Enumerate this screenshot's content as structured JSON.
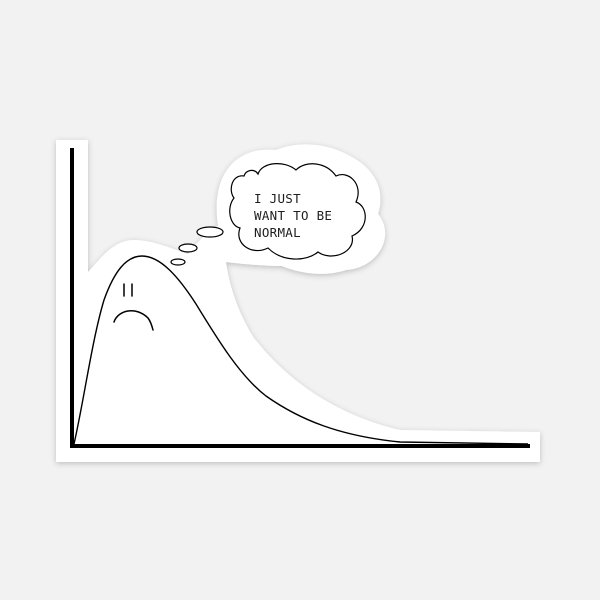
{
  "sticker": {
    "thought_lines": [
      "I JUST",
      "WANT TO BE",
      "NORMAL"
    ]
  },
  "colors": {
    "background": "#f2f2f2",
    "sticker_fill": "#ffffff",
    "ink": "#000000"
  },
  "icons": [
    "sad-face-icon",
    "thought-bubble-icon"
  ]
}
